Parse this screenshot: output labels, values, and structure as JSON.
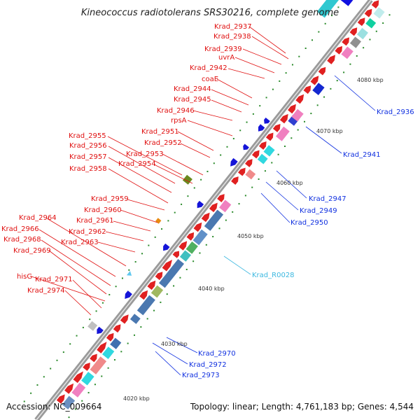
{
  "title": "Kineococcus radiotolerans SRS30216, complete genome",
  "footer": {
    "accession": "Accession: NC_009664",
    "topology": "Topology: linear; Length: 4,761,183 bp; Genes: 4,544"
  },
  "colors": {
    "backbone": "#9a9a9a",
    "forward_gene": "#e02020",
    "reverse_gene": "#1414d8",
    "rna": "#60c8f0",
    "label_forward": "#e01010",
    "label_reverse": "#1030e0",
    "label_rna": "#3cb8e0",
    "tick": "#2a8a2a"
  },
  "scale_labels": [
    "4080 kbp",
    "4070 kbp",
    "4060 kbp",
    "4050 kbp",
    "4040 kbp",
    "4030 kbp",
    "4020 kbp"
  ],
  "labels_forward": [
    "Krad_2937",
    "Krad_2938",
    "Krad_2939",
    "uvrA",
    "Krad_2942",
    "coaE",
    "Krad_2944",
    "Krad_2945",
    "Krad_2946",
    "rpsA",
    "Krad_2951",
    "Krad_2952",
    "Krad_2953",
    "Krad_2954",
    "Krad_2955",
    "Krad_2956",
    "Krad_2957",
    "Krad_2958",
    "Krad_2959",
    "Krad_2960",
    "Krad_2961",
    "Krad_2962",
    "Krad_2963",
    "Krad_2964",
    "Krad_2966",
    "Krad_2968",
    "Krad_2969",
    "hisG",
    "Krad_2971",
    "Krad_2974"
  ],
  "labels_reverse": [
    "Krad_2936",
    "Krad_2941",
    "Krad_2947",
    "Krad_2949",
    "Krad_2950",
    "Krad_2970",
    "Krad_2972",
    "Krad_2973"
  ],
  "labels_rna": [
    "Krad_R0028"
  ]
}
